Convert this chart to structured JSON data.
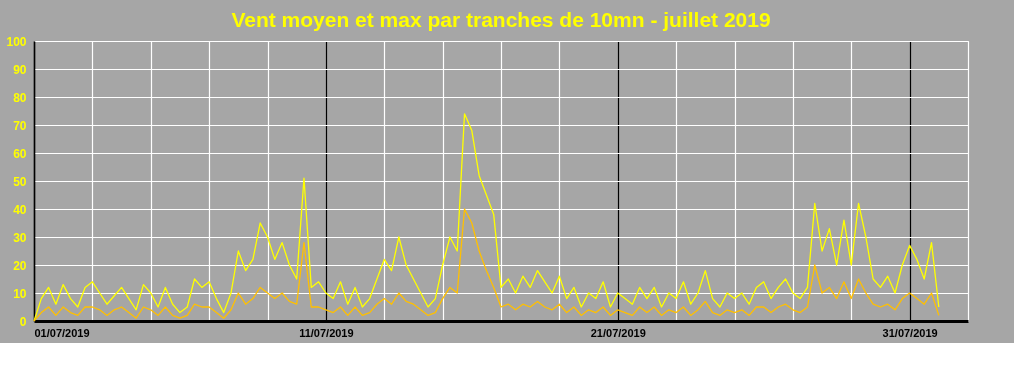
{
  "chart_data": {
    "type": "line",
    "title": "Vent moyen et max par tranches de 10mn - juillet 2019",
    "x": [
      "2019-07-01T00:00",
      "2019-07-01T06:00",
      "2019-07-01T12:00",
      "2019-07-01T18:00",
      "2019-07-02T00:00",
      "2019-07-02T06:00",
      "2019-07-02T12:00",
      "2019-07-02T18:00",
      "2019-07-03T00:00",
      "2019-07-03T06:00",
      "2019-07-03T12:00",
      "2019-07-03T18:00",
      "2019-07-04T00:00",
      "2019-07-04T06:00",
      "2019-07-04T12:00",
      "2019-07-04T18:00",
      "2019-07-05T00:00",
      "2019-07-05T06:00",
      "2019-07-05T12:00",
      "2019-07-05T18:00",
      "2019-07-06T00:00",
      "2019-07-06T06:00",
      "2019-07-06T12:00",
      "2019-07-06T18:00",
      "2019-07-07T00:00",
      "2019-07-07T06:00",
      "2019-07-07T12:00",
      "2019-07-07T18:00",
      "2019-07-08T00:00",
      "2019-07-08T06:00",
      "2019-07-08T12:00",
      "2019-07-08T18:00",
      "2019-07-09T00:00",
      "2019-07-09T06:00",
      "2019-07-09T12:00",
      "2019-07-09T18:00",
      "2019-07-10T00:00",
      "2019-07-10T06:00",
      "2019-07-10T12:00",
      "2019-07-10T18:00",
      "2019-07-11T00:00",
      "2019-07-11T06:00",
      "2019-07-11T12:00",
      "2019-07-11T18:00",
      "2019-07-12T00:00",
      "2019-07-12T06:00",
      "2019-07-12T12:00",
      "2019-07-12T18:00",
      "2019-07-13T00:00",
      "2019-07-13T06:00",
      "2019-07-13T12:00",
      "2019-07-13T18:00",
      "2019-07-14T00:00",
      "2019-07-14T06:00",
      "2019-07-14T12:00",
      "2019-07-14T18:00",
      "2019-07-15T00:00",
      "2019-07-15T06:00",
      "2019-07-15T12:00",
      "2019-07-15T18:00",
      "2019-07-16T00:00",
      "2019-07-16T06:00",
      "2019-07-16T12:00",
      "2019-07-16T18:00",
      "2019-07-17T00:00",
      "2019-07-17T06:00",
      "2019-07-17T12:00",
      "2019-07-17T18:00",
      "2019-07-18T00:00",
      "2019-07-18T06:00",
      "2019-07-18T12:00",
      "2019-07-18T18:00",
      "2019-07-19T00:00",
      "2019-07-19T06:00",
      "2019-07-19T12:00",
      "2019-07-19T18:00",
      "2019-07-20T00:00",
      "2019-07-20T06:00",
      "2019-07-20T12:00",
      "2019-07-20T18:00",
      "2019-07-21T00:00",
      "2019-07-21T06:00",
      "2019-07-21T12:00",
      "2019-07-21T18:00",
      "2019-07-22T00:00",
      "2019-07-22T06:00",
      "2019-07-22T12:00",
      "2019-07-22T18:00",
      "2019-07-23T00:00",
      "2019-07-23T06:00",
      "2019-07-23T12:00",
      "2019-07-23T18:00",
      "2019-07-24T00:00",
      "2019-07-24T06:00",
      "2019-07-24T12:00",
      "2019-07-24T18:00",
      "2019-07-25T00:00",
      "2019-07-25T06:00",
      "2019-07-25T12:00",
      "2019-07-25T18:00",
      "2019-07-26T00:00",
      "2019-07-26T06:00",
      "2019-07-26T12:00",
      "2019-07-26T18:00",
      "2019-07-27T00:00",
      "2019-07-27T06:00",
      "2019-07-27T12:00",
      "2019-07-27T18:00",
      "2019-07-28T00:00",
      "2019-07-28T06:00",
      "2019-07-28T12:00",
      "2019-07-28T18:00",
      "2019-07-29T00:00",
      "2019-07-29T06:00",
      "2019-07-29T12:00",
      "2019-07-29T18:00",
      "2019-07-30T00:00",
      "2019-07-30T06:00",
      "2019-07-30T12:00",
      "2019-07-30T18:00",
      "2019-07-31T00:00",
      "2019-07-31T06:00",
      "2019-07-31T12:00",
      "2019-07-31T18:00",
      "2019-08-01T00:00"
    ],
    "series": [
      {
        "color": "#ffff00",
        "values": [
          0,
          8,
          12,
          6,
          13,
          8,
          5,
          12,
          14,
          10,
          6,
          9,
          12,
          8,
          4,
          13,
          10,
          5,
          12,
          6,
          3,
          5,
          15,
          12,
          14,
          8,
          3,
          10,
          25,
          18,
          22,
          35,
          30,
          22,
          28,
          20,
          15,
          51,
          12,
          14,
          10,
          8,
          14,
          6,
          12,
          5,
          8,
          15,
          22,
          18,
          30,
          20,
          15,
          10,
          5,
          8,
          20,
          30,
          25,
          74,
          68,
          52,
          45,
          38,
          12,
          15,
          10,
          16,
          12,
          18,
          14,
          10,
          16,
          8,
          12,
          5,
          10,
          8,
          14,
          5,
          10,
          8,
          6,
          12,
          8,
          12,
          5,
          10,
          8,
          14,
          6,
          10,
          18,
          8,
          5,
          10,
          8,
          10,
          6,
          12,
          14,
          8,
          12,
          15,
          10,
          8,
          12,
          42,
          25,
          33,
          20,
          36,
          20,
          42,
          30,
          15,
          12,
          16,
          10,
          20,
          27,
          22,
          15,
          28,
          5
        ]
      },
      {
        "color": "#ffc000",
        "values": [
          0,
          3,
          5,
          2,
          5,
          3,
          2,
          5,
          5,
          4,
          2,
          4,
          5,
          3,
          1,
          5,
          4,
          2,
          5,
          2,
          1,
          2,
          6,
          5,
          5,
          3,
          1,
          4,
          10,
          6,
          8,
          12,
          10,
          8,
          10,
          7,
          6,
          28,
          5,
          5,
          4,
          3,
          5,
          2,
          5,
          2,
          3,
          6,
          8,
          6,
          10,
          7,
          6,
          4,
          2,
          3,
          8,
          12,
          10,
          40,
          35,
          25,
          18,
          12,
          5,
          6,
          4,
          6,
          5,
          7,
          5,
          4,
          6,
          3,
          5,
          2,
          4,
          3,
          5,
          2,
          4,
          3,
          2,
          5,
          3,
          5,
          2,
          4,
          3,
          5,
          2,
          4,
          7,
          3,
          2,
          4,
          3,
          4,
          2,
          5,
          5,
          3,
          5,
          6,
          4,
          3,
          5,
          20,
          10,
          12,
          8,
          14,
          8,
          15,
          10,
          6,
          5,
          6,
          4,
          8,
          10,
          8,
          6,
          10,
          2
        ]
      }
    ],
    "xlim": [
      "2019-07-01T00:00",
      "2019-08-02T00:00"
    ],
    "xticks": [
      {
        "value": "2019-07-01T00:00",
        "label": "01/07/2019"
      },
      {
        "value": "2019-07-03T00:00",
        "label": null
      },
      {
        "value": "2019-07-05T00:00",
        "label": null
      },
      {
        "value": "2019-07-07T00:00",
        "label": null
      },
      {
        "value": "2019-07-09T00:00",
        "label": null
      },
      {
        "value": "2019-07-11T00:00",
        "label": "11/07/2019"
      },
      {
        "value": "2019-07-13T00:00",
        "label": null
      },
      {
        "value": "2019-07-15T00:00",
        "label": null
      },
      {
        "value": "2019-07-17T00:00",
        "label": null
      },
      {
        "value": "2019-07-19T00:00",
        "label": null
      },
      {
        "value": "2019-07-21T00:00",
        "label": "21/07/2019"
      },
      {
        "value": "2019-07-23T00:00",
        "label": null
      },
      {
        "value": "2019-07-25T00:00",
        "label": null
      },
      {
        "value": "2019-07-27T00:00",
        "label": null
      },
      {
        "value": "2019-07-29T00:00",
        "label": null
      },
      {
        "value": "2019-07-31T00:00",
        "label": "31/07/2019"
      },
      {
        "value": "2019-08-02T00:00",
        "label": null
      }
    ],
    "ylim": [
      0,
      100
    ],
    "yticks": [
      0,
      10,
      20,
      30,
      40,
      50,
      60,
      70,
      80,
      90,
      100
    ],
    "grid": true,
    "marker": "none",
    "line_style": "solid"
  }
}
